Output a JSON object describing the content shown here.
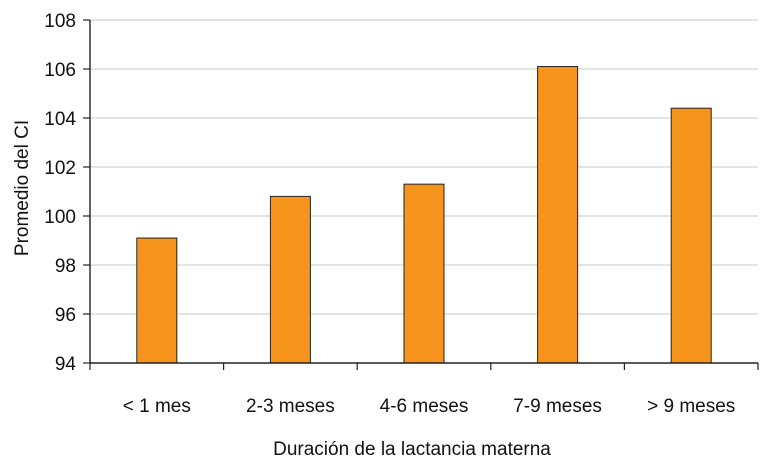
{
  "chart_data": {
    "type": "bar",
    "title": "",
    "xlabel": "Duración de la lactancia materna",
    "ylabel": "Promedio del CI",
    "categories": [
      "< 1 mes",
      "2-3 meses",
      "4-6 meses",
      "7-9 meses",
      "> 9 meses"
    ],
    "values": [
      99.1,
      100.8,
      101.3,
      106.1,
      104.4
    ],
    "ylim": [
      94,
      108
    ],
    "yticks": [
      "94",
      "96",
      "98",
      "100",
      "102",
      "104",
      "106",
      "108"
    ],
    "grid": true,
    "legend": "none",
    "colors": {
      "bar": "#F7941D",
      "bar_stroke": "#222222",
      "grid": "#D3D3D3",
      "axis": "#222222"
    }
  }
}
